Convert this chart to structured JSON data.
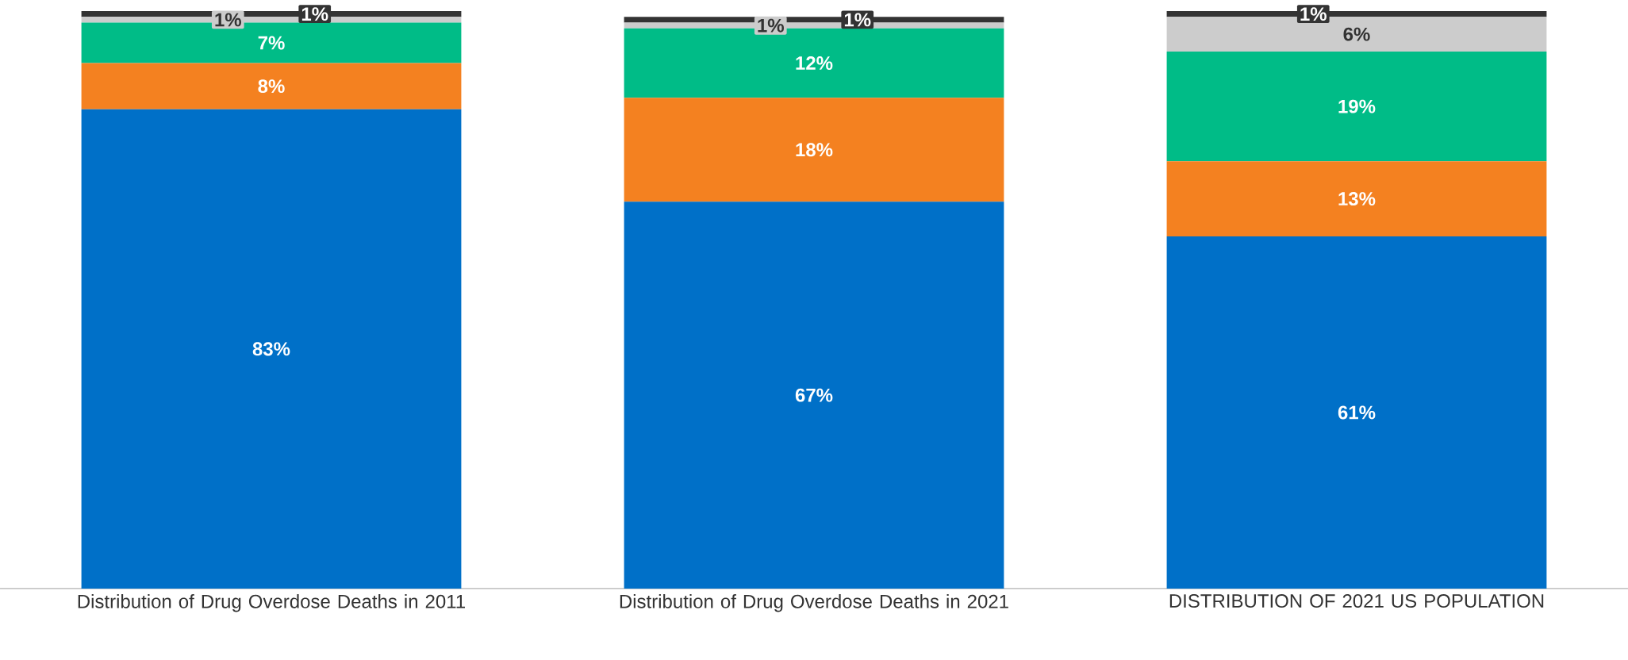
{
  "chart_data": {
    "type": "bar",
    "stacked": true,
    "categories": [
      "Distribution of Drug Overdose Deaths in 2011",
      "Distribution of Drug Overdose Deaths in 2021",
      "DISTRIBUTION OF 2021 US POPULATION"
    ],
    "series": [
      {
        "color": "#0070c8",
        "values": [
          83,
          67,
          61
        ],
        "value_labels": [
          "83%",
          "67%",
          "61%"
        ]
      },
      {
        "color": "#f48120",
        "values": [
          8,
          18,
          13
        ],
        "value_labels": [
          "8%",
          "18%",
          "13%"
        ]
      },
      {
        "color": "#00bc87",
        "values": [
          7,
          12,
          19
        ],
        "value_labels": [
          "7%",
          "12%",
          "19%"
        ]
      },
      {
        "color": "#cccccc",
        "values": [
          1,
          1,
          6
        ],
        "value_labels": [
          "1%",
          "1%",
          "6%"
        ]
      },
      {
        "color": "#333333",
        "values": [
          1,
          1,
          1
        ],
        "value_labels": [
          "1%",
          "1%",
          "1%"
        ]
      }
    ]
  }
}
